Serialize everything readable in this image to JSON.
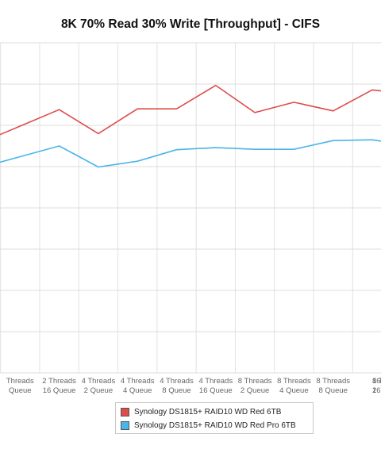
{
  "chart_data": {
    "type": "line",
    "title": "8K 70% Read 30% Write [Throughput] - CIFS",
    "xlabel": "",
    "ylabel": "",
    "grid": true,
    "legend_position": "bottom",
    "categories": [
      [
        "",
        ""
      ],
      [
        "Threads",
        "Queue"
      ],
      [
        "2 Threads",
        "16 Queue"
      ],
      [
        "4 Threads",
        "2 Queue"
      ],
      [
        "4 Threads",
        "4 Queue"
      ],
      [
        "4 Threads",
        "8 Queue"
      ],
      [
        "4 Threads",
        "16 Queue"
      ],
      [
        "8 Threads",
        "2 Queue"
      ],
      [
        "8 Threads",
        "4 Queue"
      ],
      [
        "8 Threads",
        "8 Queue"
      ],
      [
        "8 Threads",
        "16 Queue"
      ],
      [
        "16",
        "2"
      ]
    ],
    "ylim": [
      0,
      8
    ],
    "series": [
      {
        "name": "Synology DS1815+ RAID10 WD Red 6TB",
        "color": "#e04b4b",
        "values": [
          null,
          5.98,
          6.38,
          5.8,
          6.4,
          6.4,
          6.97,
          6.31,
          6.56,
          6.35,
          6.86,
          6.75
        ]
      },
      {
        "name": "Synology DS1815+ RAID10 WD Red Pro 6TB",
        "color": "#4ab5e8",
        "values": [
          null,
          5.24,
          5.5,
          4.99,
          5.13,
          5.41,
          5.46,
          5.42,
          5.42,
          5.63,
          5.65,
          5.5
        ]
      }
    ]
  }
}
